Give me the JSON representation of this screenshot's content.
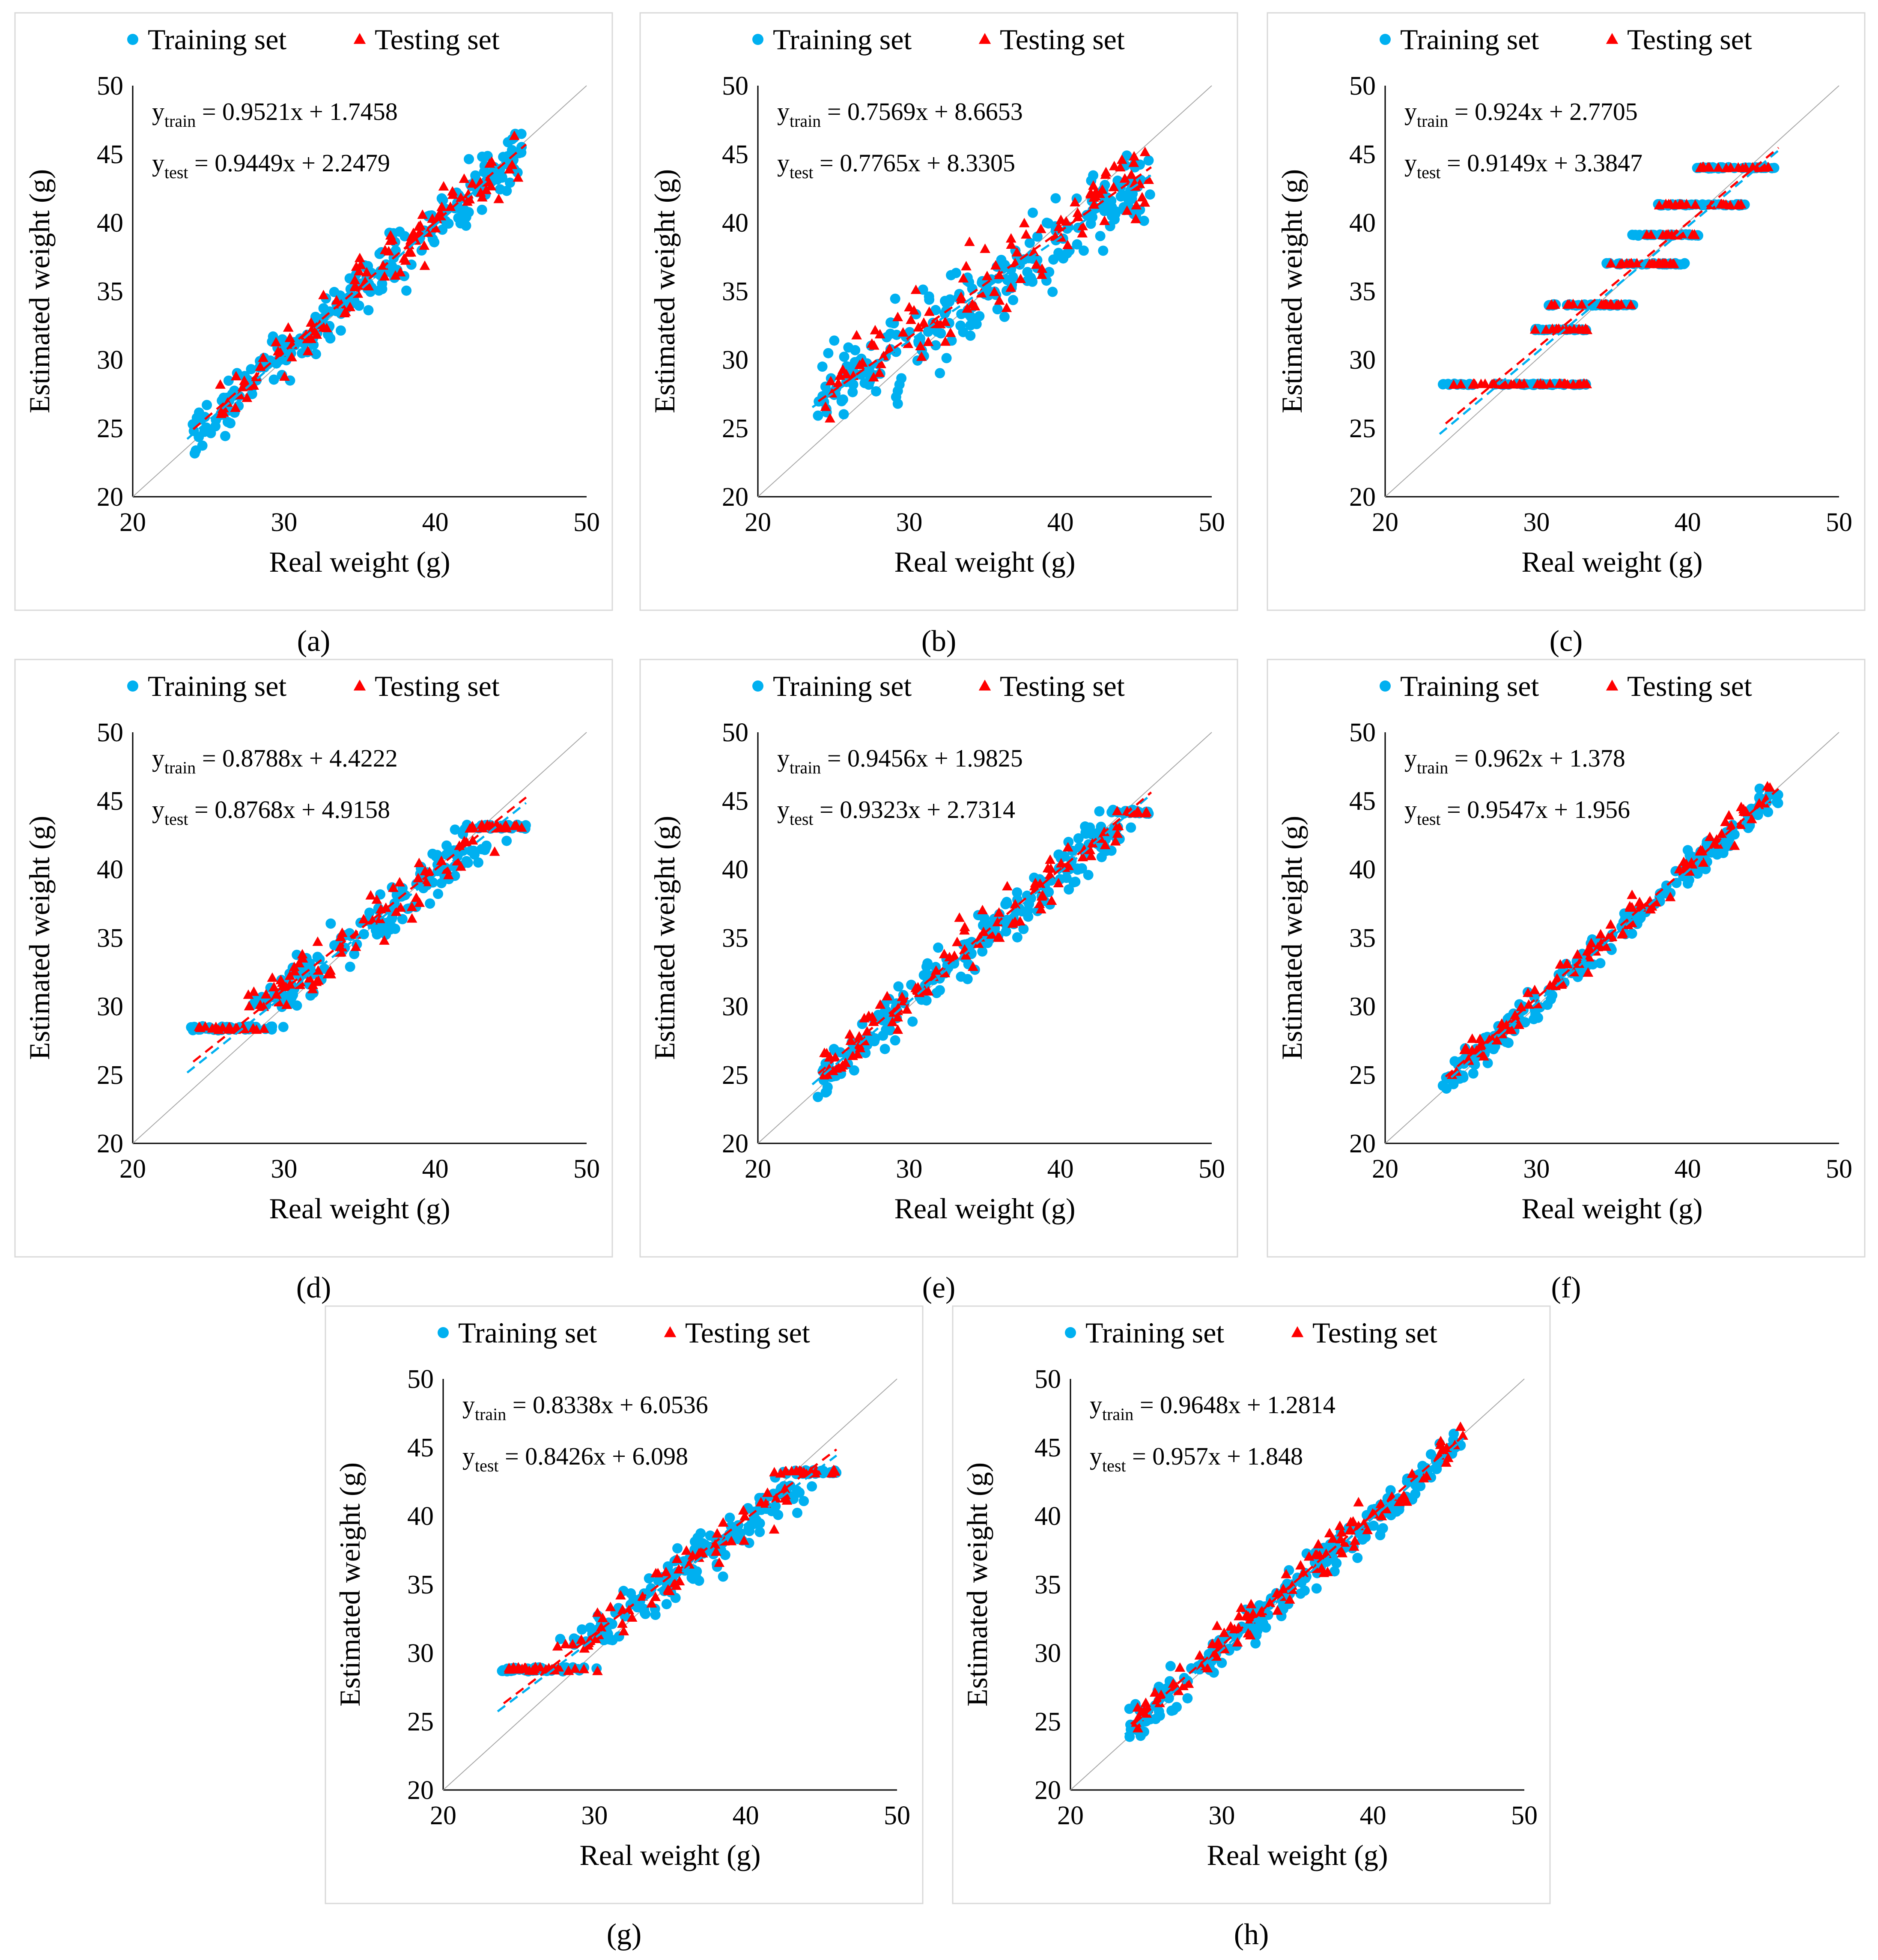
{
  "colors": {
    "train": "#00b0f0",
    "test": "#ff0000",
    "diag": "#a6a6a6"
  },
  "chart_data": [
    {
      "id": "a",
      "type": "scatter",
      "caption": "(a)",
      "xlabel": "Real weight (g)",
      "ylabel": "Estimated weight (g)",
      "xlim": [
        20,
        50
      ],
      "ylim": [
        20,
        50
      ],
      "xticks": [
        "20",
        "30",
        "40",
        "50"
      ],
      "yticks": [
        "20",
        "25",
        "30",
        "35",
        "40",
        "45",
        "50"
      ],
      "legend": [
        "Training set",
        "Testing set"
      ],
      "train_eq": {
        "label": "y",
        "sub": "train",
        "rhs": " = 0.9521x + 1.7458",
        "slope": 0.9521,
        "intercept": 1.7458
      },
      "test_eq": {
        "label": "y",
        "sub": "test",
        "rhs": " = 0.9449x + 2.2479",
        "slope": 0.9449,
        "intercept": 2.2479
      },
      "pattern": "continuous",
      "spread": 1.4,
      "ymax_cap": null,
      "levels": null
    },
    {
      "id": "b",
      "type": "scatter",
      "caption": "(b)",
      "xlabel": "Real weight (g)",
      "ylabel": "Estimated weight (g)",
      "xlim": [
        20,
        50
      ],
      "ylim": [
        20,
        50
      ],
      "xticks": [
        "20",
        "30",
        "40",
        "50"
      ],
      "yticks": [
        "20",
        "25",
        "30",
        "35",
        "40",
        "45",
        "50"
      ],
      "legend": [
        "Training set",
        "Testing set"
      ],
      "train_eq": {
        "label": "y",
        "sub": "train",
        "rhs": " = 0.7569x + 8.6653",
        "slope": 0.7569,
        "intercept": 8.6653
      },
      "test_eq": {
        "label": "y",
        "sub": "test",
        "rhs": " = 0.7765x + 8.3305",
        "slope": 0.7765,
        "intercept": 8.3305
      },
      "pattern": "continuous",
      "spread": 2.0,
      "ymax_cap": null,
      "levels": null
    },
    {
      "id": "c",
      "type": "scatter",
      "caption": "(c)",
      "xlabel": "Real weight (g)",
      "ylabel": "Estimated weight (g)",
      "xlim": [
        20,
        50
      ],
      "ylim": [
        20,
        50
      ],
      "xticks": [
        "20",
        "30",
        "40",
        "50"
      ],
      "yticks": [
        "20",
        "25",
        "30",
        "35",
        "40",
        "45",
        "50"
      ],
      "legend": [
        "Training set",
        "Testing set"
      ],
      "train_eq": {
        "label": "y",
        "sub": "train",
        "rhs": " = 0.924x + 2.7705",
        "slope": 0.924,
        "intercept": 2.7705
      },
      "test_eq": {
        "label": "y",
        "sub": "test",
        "rhs": " = 0.9149x + 3.3847",
        "slope": 0.9149,
        "intercept": 3.3847
      },
      "pattern": "step",
      "spread": 0,
      "ymax_cap": null,
      "levels": [
        [
          23.8,
          33.4,
          28.2
        ],
        [
          29.8,
          33.4,
          32.2
        ],
        [
          30.8,
          36.5,
          34.0
        ],
        [
          34.5,
          39.8,
          37.0
        ],
        [
          36.3,
          40.8,
          39.1
        ],
        [
          38.0,
          43.8,
          41.3
        ],
        [
          40.6,
          46.0,
          44.0
        ]
      ]
    },
    {
      "id": "d",
      "type": "scatter",
      "caption": "(d)",
      "xlabel": "Real weight (g)",
      "ylabel": "Estimated weight (g)",
      "xlim": [
        20,
        50
      ],
      "ylim": [
        20,
        50
      ],
      "xticks": [
        "20",
        "30",
        "40",
        "50"
      ],
      "yticks": [
        "20",
        "25",
        "30",
        "35",
        "40",
        "45",
        "50"
      ],
      "legend": [
        "Training set",
        "Testing set"
      ],
      "train_eq": {
        "label": "y",
        "sub": "train",
        "rhs": " = 0.8788x + 4.4222",
        "slope": 0.8788,
        "intercept": 4.4222
      },
      "test_eq": {
        "label": "y",
        "sub": "test",
        "rhs": " = 0.8768x + 4.9158",
        "slope": 0.8768,
        "intercept": 4.9158
      },
      "pattern": "flatends",
      "spread": 1.3,
      "ymax_cap": [
        28.4,
        43.1
      ],
      "levels": null
    },
    {
      "id": "e",
      "type": "scatter",
      "caption": "(e)",
      "xlabel": "Real weight (g)",
      "ylabel": "Estimated weight (g)",
      "xlim": [
        20,
        50
      ],
      "ylim": [
        20,
        50
      ],
      "xticks": [
        "20",
        "30",
        "40",
        "50"
      ],
      "yticks": [
        "20",
        "25",
        "30",
        "35",
        "40",
        "45",
        "50"
      ],
      "legend": [
        "Training set",
        "Testing set"
      ],
      "train_eq": {
        "label": "y",
        "sub": "train",
        "rhs": " = 0.9456x + 1.9825",
        "slope": 0.9456,
        "intercept": 1.9825
      },
      "test_eq": {
        "label": "y",
        "sub": "test",
        "rhs": " = 0.9323x + 2.7314",
        "slope": 0.9323,
        "intercept": 2.7314
      },
      "pattern": "continuous",
      "spread": 1.2,
      "ymax_cap": [
        null,
        44.2
      ],
      "levels": null
    },
    {
      "id": "f",
      "type": "scatter",
      "caption": "(f)",
      "xlabel": "Real weight (g)",
      "ylabel": "Estimated weight (g)",
      "xlim": [
        20,
        50
      ],
      "ylim": [
        20,
        50
      ],
      "xticks": [
        "20",
        "30",
        "40",
        "50"
      ],
      "yticks": [
        "20",
        "25",
        "30",
        "35",
        "40",
        "45",
        "50"
      ],
      "legend": [
        "Training set",
        "Testing set"
      ],
      "train_eq": {
        "label": "y",
        "sub": "train",
        "rhs": " = 0.962x + 1.378",
        "slope": 0.962,
        "intercept": 1.378
      },
      "test_eq": {
        "label": "y",
        "sub": "test",
        "rhs": " = 0.9547x + 1.956",
        "slope": 0.9547,
        "intercept": 1.956
      },
      "pattern": "continuous",
      "spread": 0.8,
      "ymax_cap": null,
      "levels": null
    },
    {
      "id": "g",
      "type": "scatter",
      "caption": "(g)",
      "xlabel": "Real weight (g)",
      "ylabel": "Estimated weight (g)",
      "xlim": [
        20,
        50
      ],
      "ylim": [
        20,
        50
      ],
      "xticks": [
        "20",
        "30",
        "40",
        "50"
      ],
      "yticks": [
        "20",
        "25",
        "30",
        "35",
        "40",
        "45",
        "50"
      ],
      "legend": [
        "Training set",
        "Testing set"
      ],
      "train_eq": {
        "label": "y",
        "sub": "train",
        "rhs": " = 0.8338x + 6.0536",
        "slope": 0.8338,
        "intercept": 6.0536
      },
      "test_eq": {
        "label": "y",
        "sub": "test",
        "rhs": " = 0.8426x + 6.098",
        "slope": 0.8426,
        "intercept": 6.098
      },
      "pattern": "flatends",
      "spread": 1.3,
      "ymax_cap": [
        28.8,
        43.2
      ],
      "levels": null
    },
    {
      "id": "h",
      "type": "scatter",
      "caption": "(h)",
      "xlabel": "Real weight (g)",
      "ylabel": "Estimated weight (g)",
      "xlim": [
        20,
        50
      ],
      "ylim": [
        20,
        50
      ],
      "xticks": [
        "20",
        "30",
        "40",
        "50"
      ],
      "yticks": [
        "20",
        "25",
        "30",
        "35",
        "40",
        "45",
        "50"
      ],
      "legend": [
        "Training set",
        "Testing set"
      ],
      "train_eq": {
        "label": "y",
        "sub": "train",
        "rhs": " = 0.9648x + 1.2814",
        "slope": 0.9648,
        "intercept": 1.2814
      },
      "test_eq": {
        "label": "y",
        "sub": "test",
        "rhs": " = 0.957x + 1.848",
        "slope": 0.957,
        "intercept": 1.848
      },
      "pattern": "continuous",
      "spread": 1.0,
      "ymax_cap": null,
      "levels": null
    }
  ]
}
